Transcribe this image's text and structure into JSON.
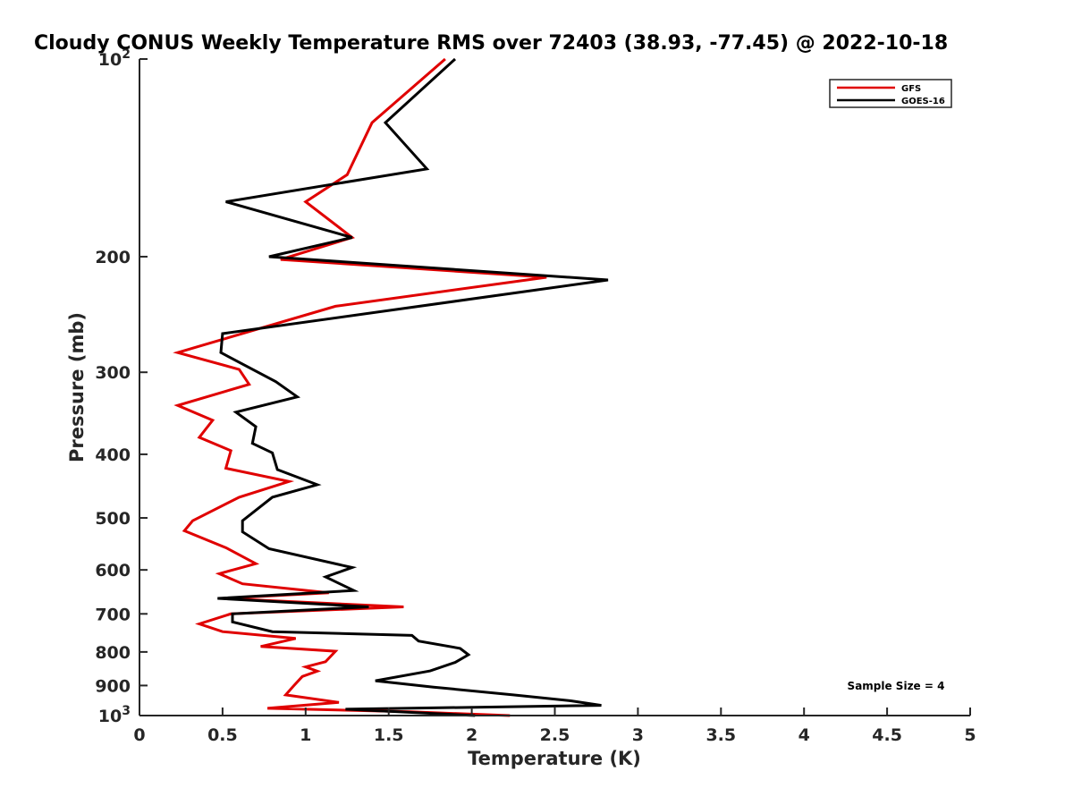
{
  "chart_data": {
    "type": "line",
    "title": "Cloudy CONUS Weekly Temperature RMS over 72403 (38.93, -77.45) @ 2022-10-18",
    "xlabel": "Temperature (K)",
    "ylabel": "Pressure (mb)",
    "xlim": [
      0,
      5
    ],
    "ylim": [
      100,
      1000
    ],
    "y_scale": "log",
    "y_reversed": true,
    "xticks": [
      0,
      0.5,
      1,
      1.5,
      2,
      2.5,
      3,
      3.5,
      4,
      4.5,
      5
    ],
    "xtick_labels": [
      "0",
      "0.5",
      "1",
      "1.5",
      "2",
      "2.5",
      "3",
      "3.5",
      "4",
      "4.5",
      "5"
    ],
    "yticks": [
      100,
      200,
      300,
      400,
      500,
      600,
      700,
      800,
      900,
      1000
    ],
    "ytick_labels": [
      {
        "base": "10",
        "exp": "2"
      },
      {
        "base": "200"
      },
      {
        "base": "300"
      },
      {
        "base": "400"
      },
      {
        "base": "500"
      },
      {
        "base": "600"
      },
      {
        "base": "700"
      },
      {
        "base": "800"
      },
      {
        "base": "900"
      },
      {
        "base": "10",
        "exp": "3"
      }
    ],
    "grid": false,
    "legend_position": "top-right",
    "annotation": "Sample Size = 4",
    "series": [
      {
        "name": "GFS",
        "color": "#e00000",
        "points": [
          [
            1.84,
            100
          ],
          [
            1.4,
            125
          ],
          [
            1.25,
            150
          ],
          [
            1.0,
            165
          ],
          [
            1.28,
            187
          ],
          [
            0.85,
            202
          ],
          [
            2.45,
            215
          ],
          [
            1.18,
            238
          ],
          [
            0.55,
            265
          ],
          [
            0.23,
            280
          ],
          [
            0.6,
            297
          ],
          [
            0.66,
            313
          ],
          [
            0.23,
            337
          ],
          [
            0.44,
            355
          ],
          [
            0.36,
            377
          ],
          [
            0.55,
            395
          ],
          [
            0.52,
            420
          ],
          [
            0.9,
            440
          ],
          [
            0.6,
            465
          ],
          [
            0.32,
            505
          ],
          [
            0.27,
            523
          ],
          [
            0.52,
            555
          ],
          [
            0.7,
            587
          ],
          [
            0.48,
            608
          ],
          [
            0.62,
            630
          ],
          [
            1.14,
            650
          ],
          [
            0.5,
            663
          ],
          [
            1.59,
            683
          ],
          [
            0.55,
            700
          ],
          [
            0.36,
            725
          ],
          [
            0.5,
            745
          ],
          [
            0.94,
            763
          ],
          [
            0.73,
            785
          ],
          [
            1.18,
            798
          ],
          [
            1.12,
            828
          ],
          [
            1.0,
            843
          ],
          [
            1.07,
            856
          ],
          [
            0.98,
            872
          ],
          [
            0.93,
            900
          ],
          [
            0.88,
            930
          ],
          [
            1.2,
            955
          ],
          [
            0.77,
            975
          ],
          [
            1.63,
            987
          ],
          [
            2.23,
            1000
          ]
        ]
      },
      {
        "name": "GOES-16",
        "color": "#000000",
        "points": [
          [
            1.9,
            100
          ],
          [
            1.48,
            125
          ],
          [
            1.73,
            147
          ],
          [
            0.52,
            165
          ],
          [
            1.28,
            187
          ],
          [
            0.78,
            200
          ],
          [
            2.82,
            217
          ],
          [
            0.5,
            262
          ],
          [
            0.49,
            280
          ],
          [
            0.82,
            310
          ],
          [
            0.95,
            327
          ],
          [
            0.58,
            345
          ],
          [
            0.7,
            363
          ],
          [
            0.68,
            385
          ],
          [
            0.8,
            398
          ],
          [
            0.83,
            422
          ],
          [
            1.07,
            445
          ],
          [
            0.8,
            465
          ],
          [
            0.62,
            505
          ],
          [
            0.62,
            525
          ],
          [
            0.78,
            557
          ],
          [
            1.28,
            595
          ],
          [
            1.12,
            615
          ],
          [
            1.29,
            645
          ],
          [
            0.47,
            663
          ],
          [
            1.38,
            683
          ],
          [
            0.56,
            700
          ],
          [
            0.56,
            720
          ],
          [
            0.8,
            745
          ],
          [
            1.64,
            755
          ],
          [
            1.68,
            770
          ],
          [
            1.93,
            790
          ],
          [
            1.98,
            808
          ],
          [
            1.9,
            830
          ],
          [
            1.75,
            855
          ],
          [
            1.42,
            885
          ],
          [
            1.77,
            905
          ],
          [
            2.25,
            930
          ],
          [
            2.6,
            950
          ],
          [
            2.78,
            965
          ],
          [
            1.24,
            978
          ],
          [
            2.02,
            1000
          ]
        ]
      }
    ]
  }
}
